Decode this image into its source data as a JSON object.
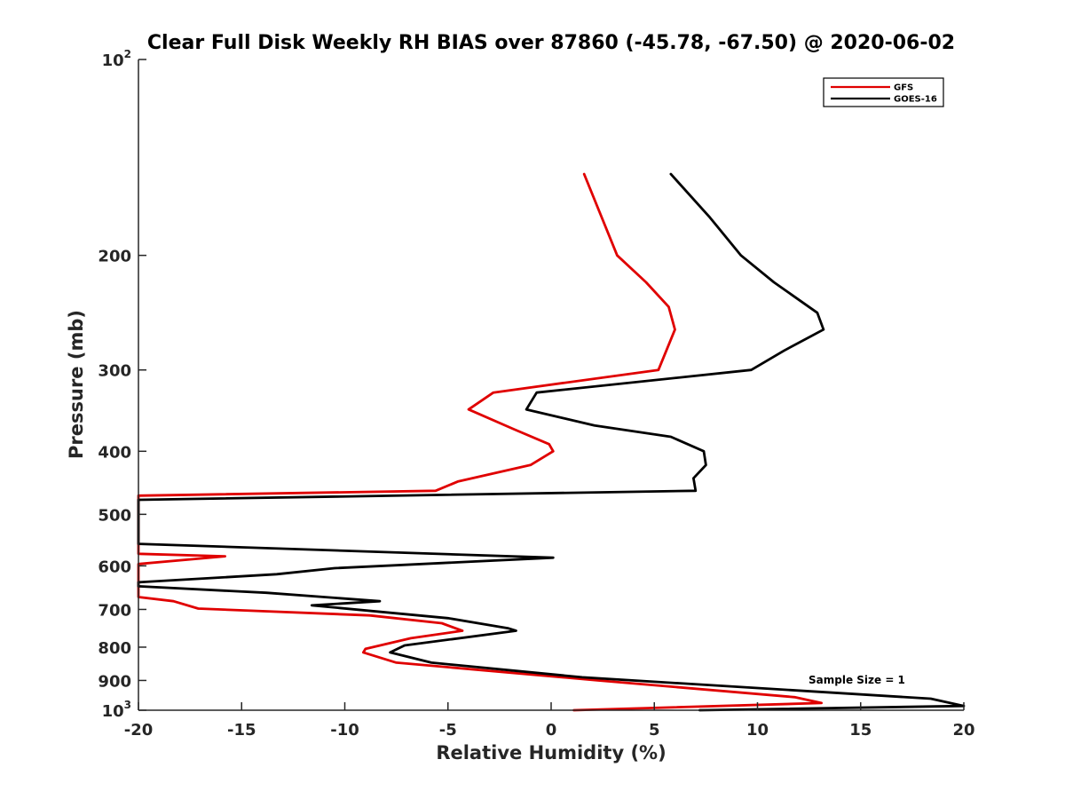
{
  "chart_data": {
    "type": "line",
    "title": "Clear Full Disk Weekly RH BIAS over 87860 (-45.78, -67.50) @ 2020-06-02",
    "xlabel": "Relative Humidity (%)",
    "ylabel": "Pressure (mb)",
    "xlim": [
      -20,
      20
    ],
    "ylim": [
      100,
      1000
    ],
    "y_scale": "log",
    "y_reversed": true,
    "x_ticks": [
      "-20",
      "-15",
      "-10",
      "-5",
      "0",
      "5",
      "10",
      "15",
      "20"
    ],
    "y_ticks": [
      {
        "value": 100,
        "base": "10",
        "exp": "2"
      },
      {
        "value": 200,
        "base": "200",
        "exp": ""
      },
      {
        "value": 300,
        "base": "300",
        "exp": ""
      },
      {
        "value": 400,
        "base": "400",
        "exp": ""
      },
      {
        "value": 500,
        "base": "500",
        "exp": ""
      },
      {
        "value": 600,
        "base": "600",
        "exp": ""
      },
      {
        "value": 700,
        "base": "700",
        "exp": ""
      },
      {
        "value": 800,
        "base": "800",
        "exp": ""
      },
      {
        "value": 900,
        "base": "900",
        "exp": ""
      },
      {
        "value": 1000,
        "base": "10",
        "exp": "3"
      }
    ],
    "grid": false,
    "legend_position": "top-right",
    "annotation": "Sample Size = 1",
    "series": [
      {
        "name": "GFS",
        "color": "#e00000",
        "points": [
          [
            1.6,
            150
          ],
          [
            3.2,
            200
          ],
          [
            4.6,
            220
          ],
          [
            5.7,
            240
          ],
          [
            6.0,
            260
          ],
          [
            5.2,
            300
          ],
          [
            -2.8,
            325
          ],
          [
            -4.0,
            345
          ],
          [
            -1.8,
            370
          ],
          [
            -0.1,
            390
          ],
          [
            0.1,
            400
          ],
          [
            -1.0,
            420
          ],
          [
            -4.5,
            445
          ],
          [
            -5.6,
            460
          ],
          [
            -20.0,
            468
          ],
          [
            -20.0,
            575
          ],
          [
            -15.8,
            580
          ],
          [
            -20.0,
            596
          ],
          [
            -20.0,
            670
          ],
          [
            -18.3,
            680
          ],
          [
            -17.1,
            698
          ],
          [
            -8.8,
            715
          ],
          [
            -5.3,
            735
          ],
          [
            -4.3,
            755
          ],
          [
            -6.8,
            775
          ],
          [
            -9.0,
            805
          ],
          [
            -9.1,
            815
          ],
          [
            -7.5,
            845
          ],
          [
            2.3,
            900
          ],
          [
            11.8,
            955
          ],
          [
            13.1,
            975
          ],
          [
            1.1,
            1000
          ]
        ]
      },
      {
        "name": "GOES-16",
        "color": "#000000",
        "points": [
          [
            5.8,
            150
          ],
          [
            7.7,
            175
          ],
          [
            9.2,
            200
          ],
          [
            10.8,
            220
          ],
          [
            12.9,
            245
          ],
          [
            13.2,
            260
          ],
          [
            11.3,
            280
          ],
          [
            9.7,
            300
          ],
          [
            -0.7,
            325
          ],
          [
            -1.2,
            345
          ],
          [
            2.1,
            365
          ],
          [
            5.8,
            380
          ],
          [
            7.4,
            400
          ],
          [
            7.5,
            420
          ],
          [
            6.9,
            440
          ],
          [
            7.0,
            460
          ],
          [
            -20.0,
            475
          ],
          [
            -20.0,
            555
          ],
          [
            0.1,
            583
          ],
          [
            -10.5,
            605
          ],
          [
            -13.3,
            618
          ],
          [
            -20.0,
            636
          ],
          [
            -20.0,
            645
          ],
          [
            -13.8,
            660
          ],
          [
            -8.3,
            680
          ],
          [
            -11.6,
            690
          ],
          [
            -5.0,
            722
          ],
          [
            -2.1,
            748
          ],
          [
            -1.7,
            755
          ],
          [
            -7.1,
            795
          ],
          [
            -7.8,
            815
          ],
          [
            -5.8,
            845
          ],
          [
            1.5,
            890
          ],
          [
            18.4,
            960
          ],
          [
            20.0,
            985
          ],
          [
            7.2,
            1000
          ]
        ]
      }
    ]
  }
}
